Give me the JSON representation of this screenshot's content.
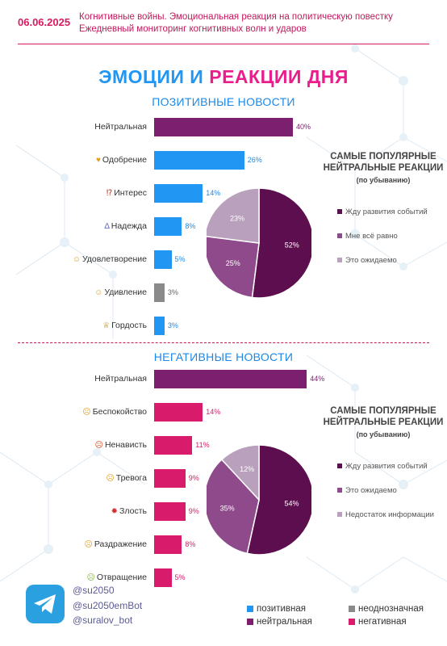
{
  "header": {
    "date": "06.06.2025",
    "line1": "Когнитивные войны. Эмоциональная реакция на политическую повестку",
    "line2": "Ежедневный мониторинг когнитивных волн и ударов"
  },
  "title_part1": "ЭМОЦИИ И ",
  "title_part2": "РЕАКЦИИ ДНЯ",
  "colors": {
    "positive": "#2196f3",
    "ambiguous": "#8a8a8a",
    "neutral": "#7b1f6e",
    "negative": "#d81b6b"
  },
  "chart_data": [
    {
      "type": "bar",
      "title": "ПОЗИТИВНЫЕ НОВОСТИ",
      "categories": [
        "Нейтральная",
        "Одобрение",
        "Интерес",
        "Надежда",
        "Удовлетворение",
        "Удивление",
        "Гордость"
      ],
      "values": [
        40,
        26,
        14,
        8,
        5,
        3,
        3
      ],
      "value_labels": [
        "40%",
        "26%",
        "14%",
        "8%",
        "5%",
        "3%",
        "3%"
      ],
      "bar_types": [
        "neutral",
        "positive",
        "positive",
        "positive",
        "positive",
        "ambiguous",
        "positive"
      ],
      "icons": [
        "",
        "heart-hands-icon",
        "exclamation-question-icon",
        "praying-hands-icon",
        "slight-smile-icon",
        "astonished-face-icon",
        "trophy-icon"
      ],
      "unit": "%"
    },
    {
      "type": "pie",
      "title": "САМЫЕ ПОПУЛЯРНЫЕ НЕЙТРАЛЬНЫЕ РЕАКЦИИ",
      "subtitle": "(по убыванию)",
      "labels": [
        "Жду развития событий",
        "Мне всё равно",
        "Это ожидаемо"
      ],
      "values": [
        52,
        25,
        23
      ],
      "value_labels": [
        "52%",
        "25%",
        "23%"
      ],
      "colors": [
        "#5c0e4e",
        "#8e4a8a",
        "#b9a0bc"
      ]
    },
    {
      "type": "bar",
      "title": "НЕГАТИВНЫЕ НОВОСТИ",
      "categories": [
        "Нейтральная",
        "Беспокойство",
        "Ненависть",
        "Тревога",
        "Злость",
        "Раздражение",
        "Отвращение"
      ],
      "values": [
        44,
        14,
        11,
        9,
        9,
        8,
        5
      ],
      "value_labels": [
        "44%",
        "14%",
        "11%",
        "9%",
        "9%",
        "8%",
        "5%"
      ],
      "bar_types": [
        "neutral",
        "negative",
        "negative",
        "negative",
        "negative",
        "negative",
        "negative"
      ],
      "icons": [
        "",
        "worried-face-icon",
        "angry-face-icon",
        "anxious-face-icon",
        "angry-symbol-icon",
        "frowning-face-icon",
        "nauseated-face-icon"
      ],
      "unit": "%"
    },
    {
      "type": "pie",
      "title": "САМЫЕ ПОПУЛЯРНЫЕ НЕЙТРАЛЬНЫЕ РЕАКЦИИ",
      "subtitle": "(по убыванию)",
      "labels": [
        "Жду развития событий",
        "Это ожидаемо",
        "Недостаток информации"
      ],
      "values": [
        54,
        35,
        12
      ],
      "value_labels": [
        "54%",
        "35%",
        "12%"
      ],
      "colors": [
        "#5c0e4e",
        "#8e4a8a",
        "#b9a0bc"
      ]
    }
  ],
  "footer": {
    "handles": [
      "@su2050",
      "@su2050emBot",
      "@suralov_bot"
    ],
    "legend": [
      {
        "label": "позитивная",
        "color": "#2196f3"
      },
      {
        "label": "неоднозначная",
        "color": "#8a8a8a"
      },
      {
        "label": "нейтральная",
        "color": "#7b1f6e"
      },
      {
        "label": "негативная",
        "color": "#d81b6b"
      }
    ]
  }
}
